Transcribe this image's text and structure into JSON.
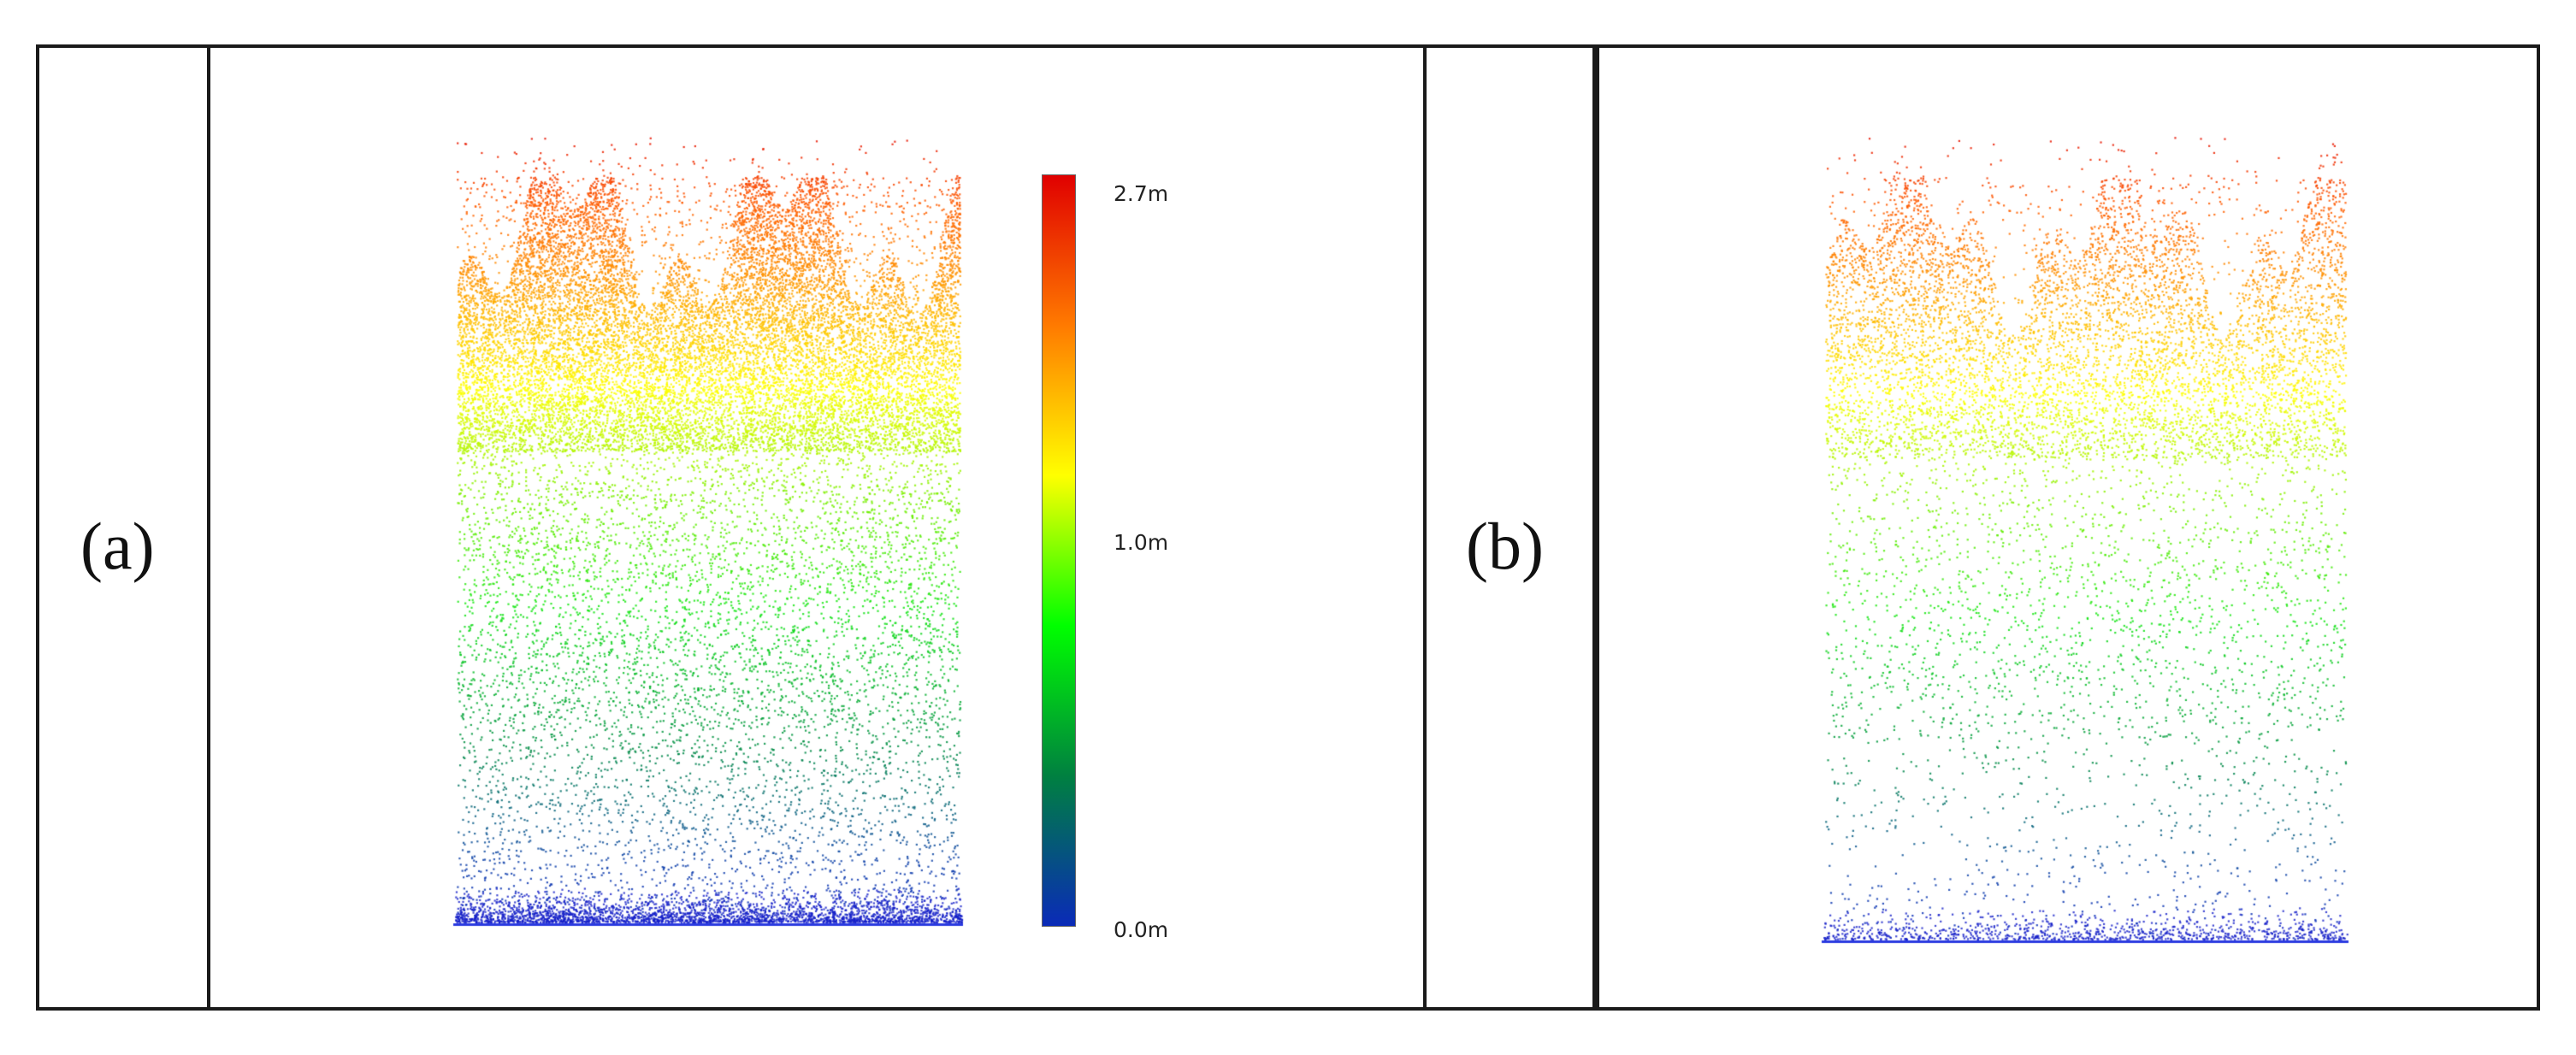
{
  "figure": {
    "panel_a_label": "(a)",
    "panel_b_label": "(b)"
  },
  "colorbar": {
    "max_label": "2.7m",
    "mid_label": "1.0m",
    "min_label": "0.0m",
    "max_value": 2.7,
    "mid_value": 1.0,
    "min_value": 0.0,
    "gradient": [
      "#e00000",
      "#ff7a00",
      "#ffff00",
      "#00ff00",
      "#008040",
      "#0a2ab8"
    ]
  },
  "point_clouds": {
    "a": {
      "description_value_max": 2.7,
      "density": "high",
      "ground_color": "#1a1ad0"
    },
    "b": {
      "description_value_max": 2.7,
      "density": "low",
      "ground_color": "#1a1ad0"
    }
  }
}
